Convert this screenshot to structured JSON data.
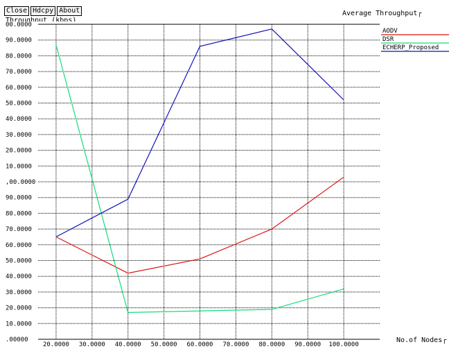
{
  "window": {
    "buttons": [
      "Close",
      "Hdcpy",
      "About"
    ]
  },
  "chart_data": {
    "type": "line",
    "title": "Average Throughput",
    "ylabel": "Throughput (kbps)",
    "xlabel": "No.of Nodes",
    "x_tick_labels": [
      "20.0000",
      "30.0000",
      "40.0000",
      "50.0000",
      "60.0000",
      "70.0000",
      "80.0000",
      "90.0000",
      "100.0000"
    ],
    "y_tick_labels": [
      ".00000",
      "10.0000",
      "20.0000",
      "30.0000",
      "40.0000",
      "50.0000",
      "60.0000",
      "70.0000",
      "80.0000",
      "90.0000",
      ",00.0000",
      "10.0000",
      "20.0000",
      "30.0000",
      "40.0000",
      "50.0000",
      "60.0000",
      "70.0000",
      "80.0000",
      "90.0000",
      "00.0000"
    ],
    "xlim": [
      15,
      110
    ],
    "ylim": [
      0,
      200
    ],
    "grid": true,
    "legend_position": "right",
    "x": [
      20,
      40,
      60,
      80,
      100
    ],
    "series": [
      {
        "name": "AODV",
        "color": "#dd1111",
        "values": [
          65,
          42,
          51,
          70,
          103
        ]
      },
      {
        "name": "DSR",
        "color": "#11dd77",
        "values": [
          187,
          17,
          18,
          19,
          32
        ]
      },
      {
        "name": "ECHERP_Proposed",
        "color": "#1111bb",
        "values": [
          65,
          89,
          186,
          197,
          152
        ]
      }
    ]
  }
}
